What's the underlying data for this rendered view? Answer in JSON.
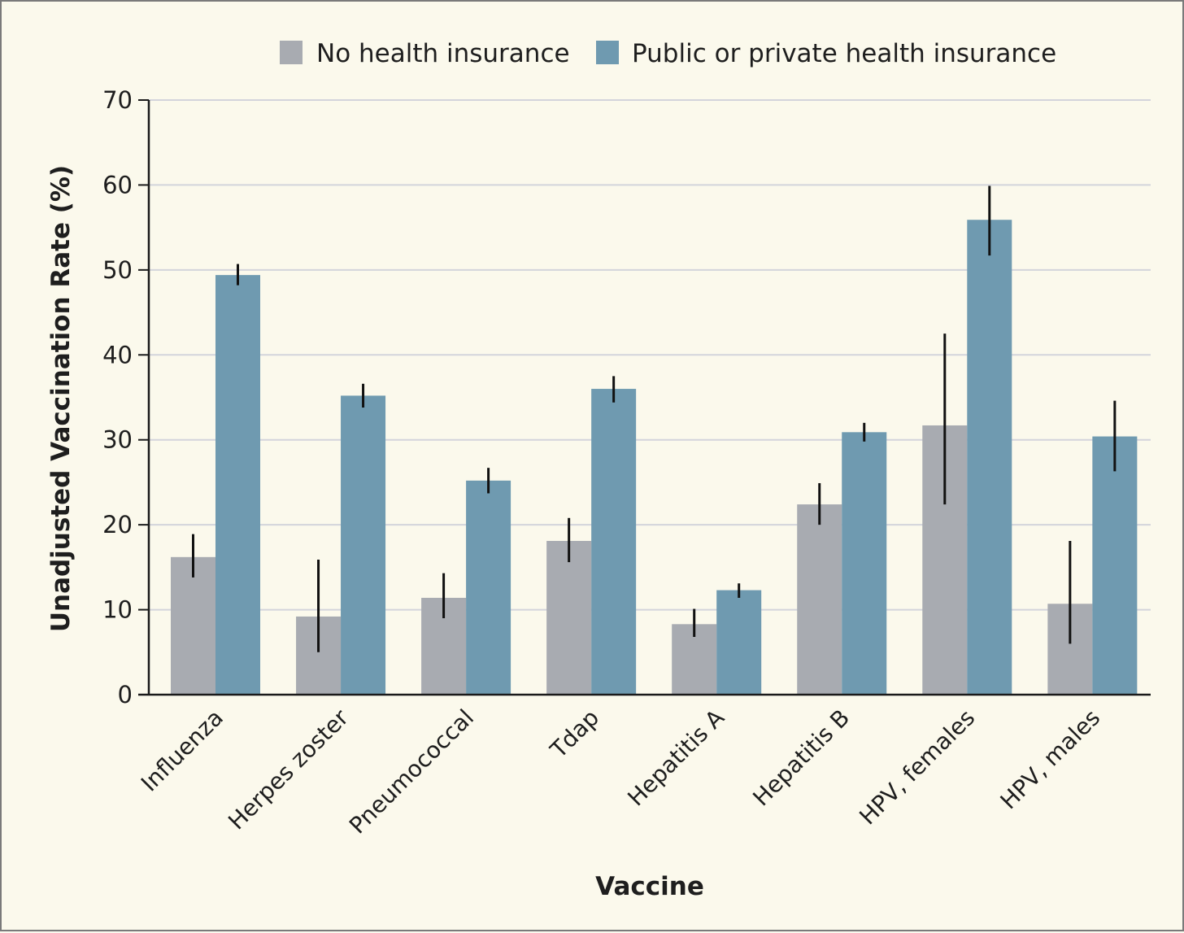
{
  "chart_data": {
    "type": "bar",
    "xlabel": "Vaccine",
    "ylabel": "Unadjusted Vaccination Rate (%)",
    "ylim": [
      0,
      70
    ],
    "yticks": [
      0,
      10,
      20,
      30,
      40,
      50,
      60,
      70
    ],
    "grid": true,
    "legend_position": "top",
    "categories": [
      "Influenza",
      "Herpes zoster",
      "Pneumococcal",
      "Tdap",
      "Hepatitis A",
      "Hepatitis B",
      "HPV, females",
      "HPV, males"
    ],
    "series": [
      {
        "name": "No health insurance",
        "color": "#a8abb1",
        "values": [
          16.2,
          9.2,
          11.4,
          18.1,
          8.3,
          22.4,
          31.7,
          10.7
        ],
        "error_low": [
          13.8,
          5.0,
          9.0,
          15.6,
          6.8,
          20.0,
          22.4,
          6.0
        ],
        "error_high": [
          18.9,
          15.9,
          14.3,
          20.8,
          10.1,
          24.9,
          42.5,
          18.1
        ]
      },
      {
        "name": "Public or private health insurance",
        "color": "#6f9ab0",
        "values": [
          49.4,
          35.2,
          25.2,
          36.0,
          12.3,
          30.9,
          55.9,
          30.4
        ],
        "error_low": [
          48.2,
          33.8,
          23.7,
          34.4,
          11.4,
          29.8,
          51.7,
          26.3
        ],
        "error_high": [
          50.7,
          36.6,
          26.7,
          37.5,
          13.1,
          32.0,
          59.9,
          34.6
        ]
      }
    ]
  }
}
